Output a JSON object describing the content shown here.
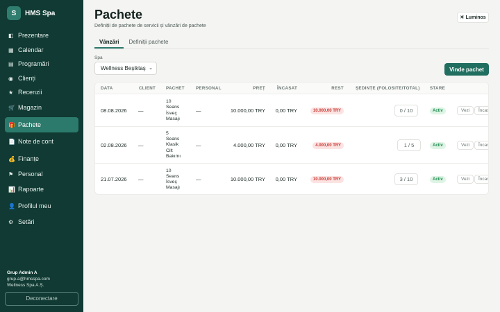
{
  "brand": {
    "logo_letter": "S",
    "name": "HMS Spa"
  },
  "sidebar": {
    "items": [
      {
        "icon": "◧",
        "icon_name": "overview-icon",
        "label": "Prezentare"
      },
      {
        "icon": "▦",
        "icon_name": "calendar-icon",
        "label": "Calendar"
      },
      {
        "icon": "▤",
        "icon_name": "schedule-icon",
        "label": "Programări"
      },
      {
        "icon": "◉",
        "icon_name": "clients-icon",
        "label": "Clienți"
      },
      {
        "icon": "★",
        "icon_name": "star-icon",
        "label": "Recenzii"
      },
      {
        "icon": "🛒",
        "icon_name": "cart-icon",
        "label": "Magazin"
      },
      {
        "icon": "🎁",
        "icon_name": "gift-icon",
        "label": "Pachete"
      },
      {
        "icon": "📄",
        "icon_name": "document-icon",
        "label": "Note de cont"
      },
      {
        "icon": "💰",
        "icon_name": "money-bag-icon",
        "label": "Finanțe"
      },
      {
        "icon": "⚑",
        "icon_name": "flag-icon",
        "label": "Personal"
      },
      {
        "icon": "📊",
        "icon_name": "bar-chart-icon",
        "label": "Rapoarte"
      },
      {
        "icon": "👤",
        "icon_name": "user-icon",
        "label": "Profilul meu"
      },
      {
        "icon": "⚙",
        "icon_name": "gear-icon",
        "label": "Setări"
      }
    ],
    "active_label": "Pachete",
    "user": {
      "name": "Grup Admin A",
      "email": "grup.a@hmsspa.com",
      "company": "Wellness Spa A.Ș."
    },
    "logout_label": "Deconectare"
  },
  "header": {
    "title": "Pachete",
    "subtitle": "Definiții de pachete de servicii și vânzări de pachete",
    "theme_label": "☀ Luminos"
  },
  "tabs": [
    {
      "label": "Vânzări",
      "active": true
    },
    {
      "label": "Definiții pachete",
      "active": false
    }
  ],
  "filter": {
    "spa_label": "Spa",
    "spa_value": "Wellness Beşiktaş"
  },
  "sell_button": "Vinde pachet",
  "table": {
    "columns": [
      "DATA",
      "CLIENT",
      "PACHET",
      "PERSONAL",
      "PREȚ",
      "ÎNCASAT",
      "REST",
      "ȘEDINȚE (FOLOSITE/TOTAL)",
      "STARE"
    ],
    "rows": [
      {
        "date": "08.08.2026",
        "client": "—",
        "package_lines": [
          "10",
          "Seans",
          "İsveç",
          "Masajı"
        ],
        "staff": "—",
        "price": "10.000,00 TRY",
        "paid": "0,00 TRY",
        "rest": "10.000,00 TRY",
        "sessions": "0 / 10",
        "status": "Activ",
        "view": "Vezi",
        "collect": "Încas"
      },
      {
        "date": "02.08.2026",
        "client": "—",
        "package_lines": [
          "5",
          "Seans",
          "Klasik",
          "Cilt",
          "Bakımı"
        ],
        "staff": "—",
        "price": "4.000,00 TRY",
        "paid": "0,00 TRY",
        "rest": "4.000,00 TRY",
        "sessions": "1 / 5",
        "status": "Activ",
        "view": "Vezi",
        "collect": "Încas"
      },
      {
        "date": "21.07.2026",
        "client": "—",
        "package_lines": [
          "10",
          "Seans",
          "İsveç",
          "Masajı"
        ],
        "staff": "—",
        "price": "10.000,00 TRY",
        "paid": "0,00 TRY",
        "rest": "10.000,00 TRY",
        "sessions": "3 / 10",
        "status": "Activ",
        "view": "Vezi",
        "collect": "Încas"
      }
    ]
  },
  "colors": {
    "sidebar_bg": "#103a33",
    "accent": "#1f6e5f",
    "active_nav": "#2b7a6c"
  }
}
